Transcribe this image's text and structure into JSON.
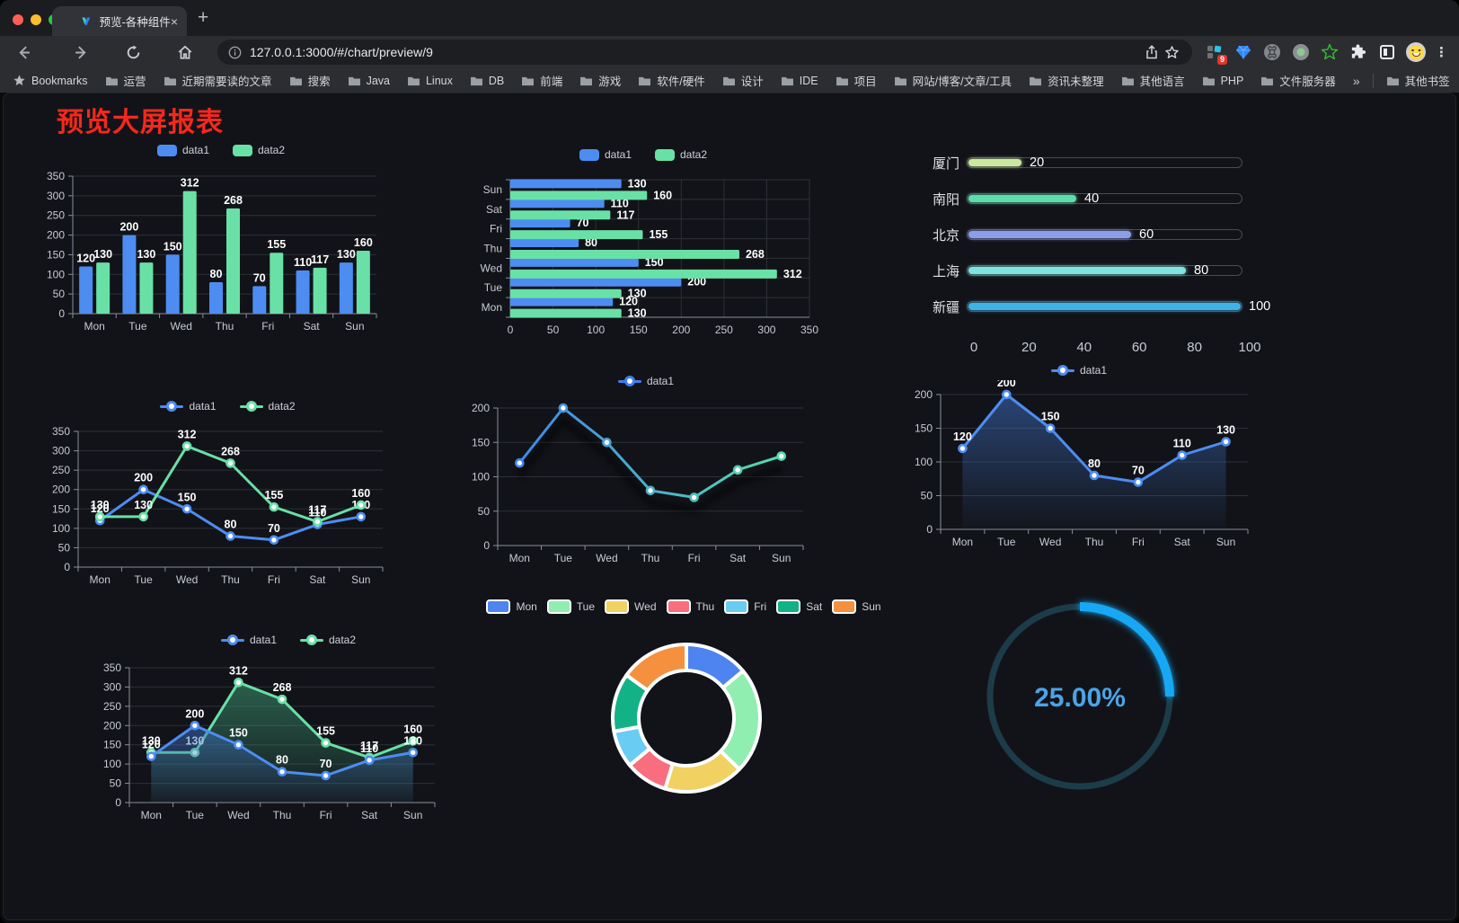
{
  "browser": {
    "traffic_lights": [
      "#ff5f57",
      "#febc2e",
      "#28c840"
    ],
    "tab": {
      "title": "预览-各种组件",
      "close": "×",
      "new_tab": "+"
    },
    "url": "127.0.0.1:3000/#/chart/preview/9",
    "badge_count": "9",
    "menu_dots": "⋮",
    "bookmarks": [
      "运营",
      "近期需要读的文章",
      "搜索",
      "Java",
      "Linux",
      "DB",
      "前端",
      "游戏",
      "软件/硬件",
      "设计",
      "IDE",
      "项目",
      "网站/博客/文章/工具",
      "资讯未整理",
      "其他语言",
      "PHP",
      "文件服务器"
    ],
    "bookmarks_label": "Bookmarks",
    "bookmarks_overflow": "»",
    "other_bookmarks": "其他书签"
  },
  "page": {
    "title": "预览大屏报表",
    "title_color": "#f5281d"
  },
  "chart_data": [
    {
      "id": "grouped-bar",
      "type": "bar",
      "title": "",
      "categories": [
        "Mon",
        "Tue",
        "Wed",
        "Thu",
        "Fri",
        "Sat",
        "Sun"
      ],
      "series": [
        {
          "name": "data1",
          "color": "#4d8df2",
          "values": [
            120,
            200,
            150,
            80,
            70,
            110,
            130
          ]
        },
        {
          "name": "data2",
          "color": "#69e0a6",
          "values": [
            130,
            130,
            312,
            268,
            155,
            117,
            160
          ]
        }
      ],
      "ylim": [
        0,
        350
      ],
      "yticks": [
        0,
        50,
        100,
        150,
        200,
        250,
        300,
        350
      ],
      "legend_position": "top",
      "grid": true,
      "value_labels": true
    },
    {
      "id": "grouped-hbar",
      "type": "bar",
      "orientation": "horizontal",
      "categories": [
        "Mon",
        "Tue",
        "Wed",
        "Thu",
        "Fri",
        "Sat",
        "Sun"
      ],
      "series": [
        {
          "name": "data1",
          "color": "#4d8df2",
          "values": [
            120,
            200,
            150,
            80,
            70,
            110,
            130
          ]
        },
        {
          "name": "data2",
          "color": "#69e0a6",
          "values": [
            130,
            130,
            312,
            268,
            155,
            117,
            160
          ]
        }
      ],
      "xlim": [
        0,
        350
      ],
      "xticks": [
        0,
        50,
        100,
        150,
        200,
        250,
        300,
        350
      ],
      "legend_position": "top",
      "grid": true,
      "value_labels": true
    },
    {
      "id": "capsule-progress",
      "type": "bar",
      "orientation": "horizontal-capsule",
      "rows": [
        {
          "label": "厦门",
          "value": 20,
          "color": "#cbe8a0"
        },
        {
          "label": "南阳",
          "value": 40,
          "color": "#5fdcab"
        },
        {
          "label": "北京",
          "value": 60,
          "color": "#8d9ee8"
        },
        {
          "label": "上海",
          "value": 80,
          "color": "#7fe3e0"
        },
        {
          "label": "新疆",
          "value": 100,
          "color": "#3fb2e6"
        }
      ],
      "xlim": [
        0,
        100
      ],
      "xticks": [
        0,
        20,
        40,
        60,
        80,
        100
      ]
    },
    {
      "id": "two-line",
      "type": "line",
      "categories": [
        "Mon",
        "Tue",
        "Wed",
        "Thu",
        "Fri",
        "Sat",
        "Sun"
      ],
      "series": [
        {
          "name": "data1",
          "color": "#4d8df2",
          "values": [
            120,
            200,
            150,
            80,
            70,
            110,
            130
          ]
        },
        {
          "name": "data2",
          "color": "#69e0a6",
          "values": [
            130,
            130,
            312,
            268,
            155,
            117,
            160
          ]
        }
      ],
      "ylim": [
        0,
        350
      ],
      "yticks": [
        0,
        50,
        100,
        150,
        200,
        250,
        300,
        350
      ],
      "legend_position": "top",
      "value_labels": true
    },
    {
      "id": "gradient-line",
      "type": "line",
      "categories": [
        "Mon",
        "Tue",
        "Wed",
        "Thu",
        "Fri",
        "Sat",
        "Sun"
      ],
      "series": [
        {
          "name": "data1",
          "color": "#3f7ef0",
          "color_end": "#58e2a6",
          "values": [
            120,
            200,
            150,
            80,
            70,
            110,
            130
          ]
        }
      ],
      "ylim": [
        0,
        200
      ],
      "yticks": [
        0,
        50,
        100,
        150,
        200
      ],
      "legend_position": "top",
      "value_labels": false
    },
    {
      "id": "area-line",
      "type": "area",
      "categories": [
        "Mon",
        "Tue",
        "Wed",
        "Thu",
        "Fri",
        "Sat",
        "Sun"
      ],
      "series": [
        {
          "name": "data1",
          "color": "#4d8df2",
          "area_color": "#3d6fc0",
          "values": [
            120,
            200,
            150,
            80,
            70,
            110,
            130
          ]
        }
      ],
      "ylim": [
        0,
        200
      ],
      "yticks": [
        0,
        50,
        100,
        150,
        200
      ],
      "legend_position": "top",
      "value_labels": true
    },
    {
      "id": "two-area",
      "type": "area",
      "categories": [
        "Mon",
        "Tue",
        "Wed",
        "Thu",
        "Fri",
        "Sat",
        "Sun"
      ],
      "series": [
        {
          "name": "data1",
          "color": "#4d8df2",
          "area_color": "#3d6fc0",
          "values": [
            120,
            200,
            150,
            80,
            70,
            110,
            130
          ]
        },
        {
          "name": "data2",
          "color": "#69e0a6",
          "area_color": "#3f9e78",
          "values": [
            130,
            130,
            312,
            268,
            155,
            117,
            160
          ]
        }
      ],
      "ylim": [
        0,
        350
      ],
      "yticks": [
        0,
        50,
        100,
        150,
        200,
        250,
        300,
        350
      ],
      "legend_position": "top",
      "value_labels": true
    },
    {
      "id": "donut",
      "type": "pie",
      "categories": [
        "Mon",
        "Tue",
        "Wed",
        "Thu",
        "Fri",
        "Sat",
        "Sun"
      ],
      "values": [
        120,
        200,
        150,
        80,
        70,
        110,
        130
      ],
      "colors": [
        "#4d84f0",
        "#8feeb0",
        "#f1d161",
        "#f96e7e",
        "#69ccf2",
        "#13b286",
        "#f5903f"
      ],
      "legend_position": "top"
    },
    {
      "id": "ring-progress",
      "type": "gauge",
      "label": "25.00%",
      "percent": 25,
      "color": "#16a8f5",
      "track_color": "#1d3c49",
      "text_color": "#4ba4e6"
    }
  ]
}
